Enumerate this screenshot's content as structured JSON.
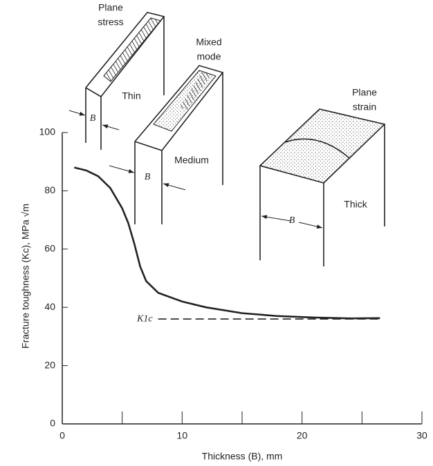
{
  "chart_data": {
    "type": "line",
    "x_label": "Thickness (B), mm",
    "y_label": "Fracture toughness (Kc), MPa √m",
    "x": [
      1,
      2,
      3,
      4,
      5,
      5.5,
      6,
      6.5,
      7,
      8,
      10,
      12,
      15,
      18,
      21,
      24,
      26.5
    ],
    "series": [
      {
        "color": "#222222",
        "values": [
          88,
          87,
          85,
          81,
          74,
          69,
          62,
          54,
          49,
          45,
          42,
          40,
          38,
          37,
          36.5,
          36.2,
          36.3
        ]
      }
    ],
    "reference_line": {
      "label": "K1c",
      "y": 36,
      "xrange": [
        8,
        26.5
      ]
    },
    "xlim": [
      0,
      30
    ],
    "xticks": [
      0,
      10,
      20,
      30
    ],
    "xminor_ticks": [
      5,
      15,
      25
    ],
    "ylim": [
      0,
      100
    ],
    "yticks": [
      0,
      20,
      40,
      60,
      80,
      100
    ],
    "specimens": [
      {
        "mode": [
          "Plane",
          "stress"
        ],
        "name": "Thin",
        "dimension": "B"
      },
      {
        "mode": [
          "Mixed",
          "mode"
        ],
        "name": "Medium",
        "dimension": "B"
      },
      {
        "mode": [
          "Plane",
          "strain"
        ],
        "name": "Thick",
        "dimension": "B"
      }
    ]
  }
}
